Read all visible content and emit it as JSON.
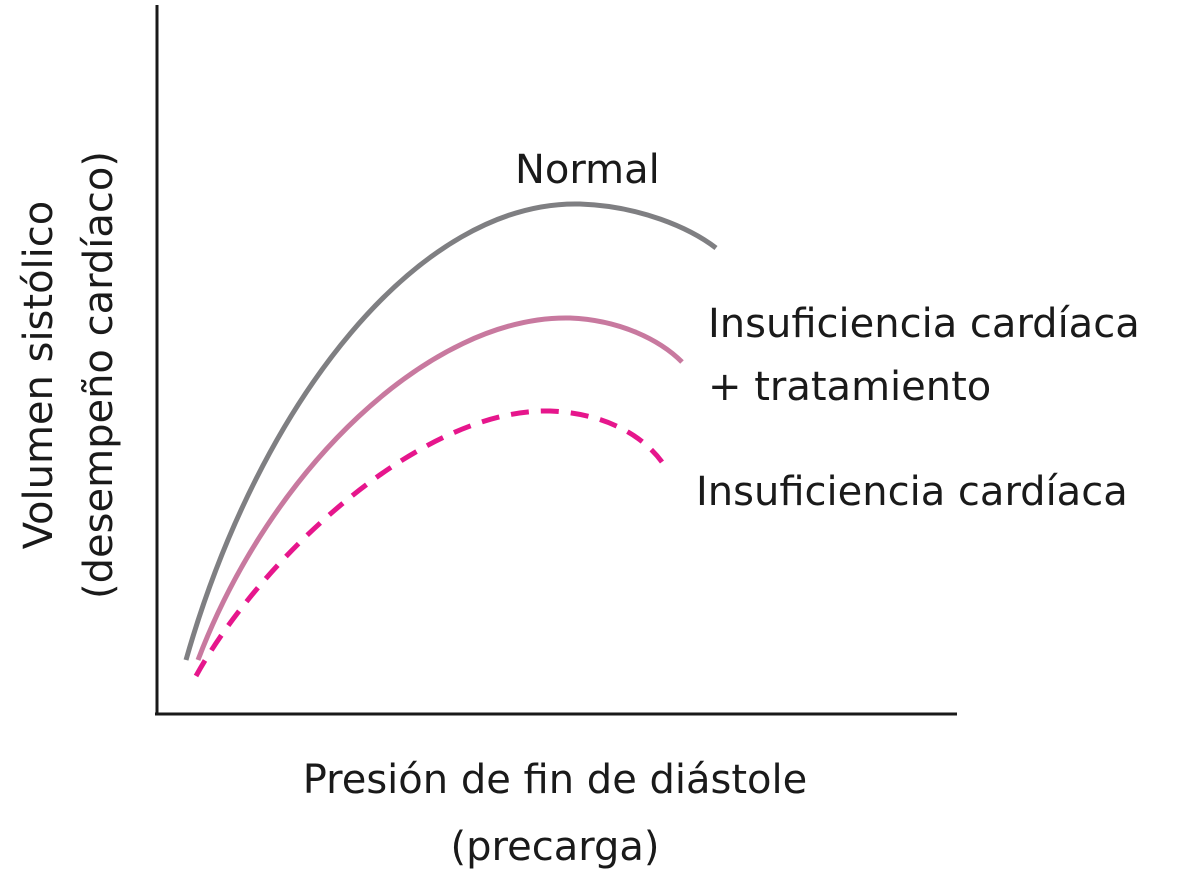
{
  "axes": {
    "y_label": [
      "Volumen sistólico",
      "(desempeño cardíaco)"
    ],
    "x_label": [
      "Presión de fin de diástole",
      "(precarga)"
    ]
  },
  "curves": [
    {
      "label": [
        "Normal"
      ]
    },
    {
      "label": [
        "Insuficiencia cardíaca",
        "+ tratamiento"
      ]
    },
    {
      "label": [
        "Insuficiencia cardíaca"
      ]
    }
  ]
}
